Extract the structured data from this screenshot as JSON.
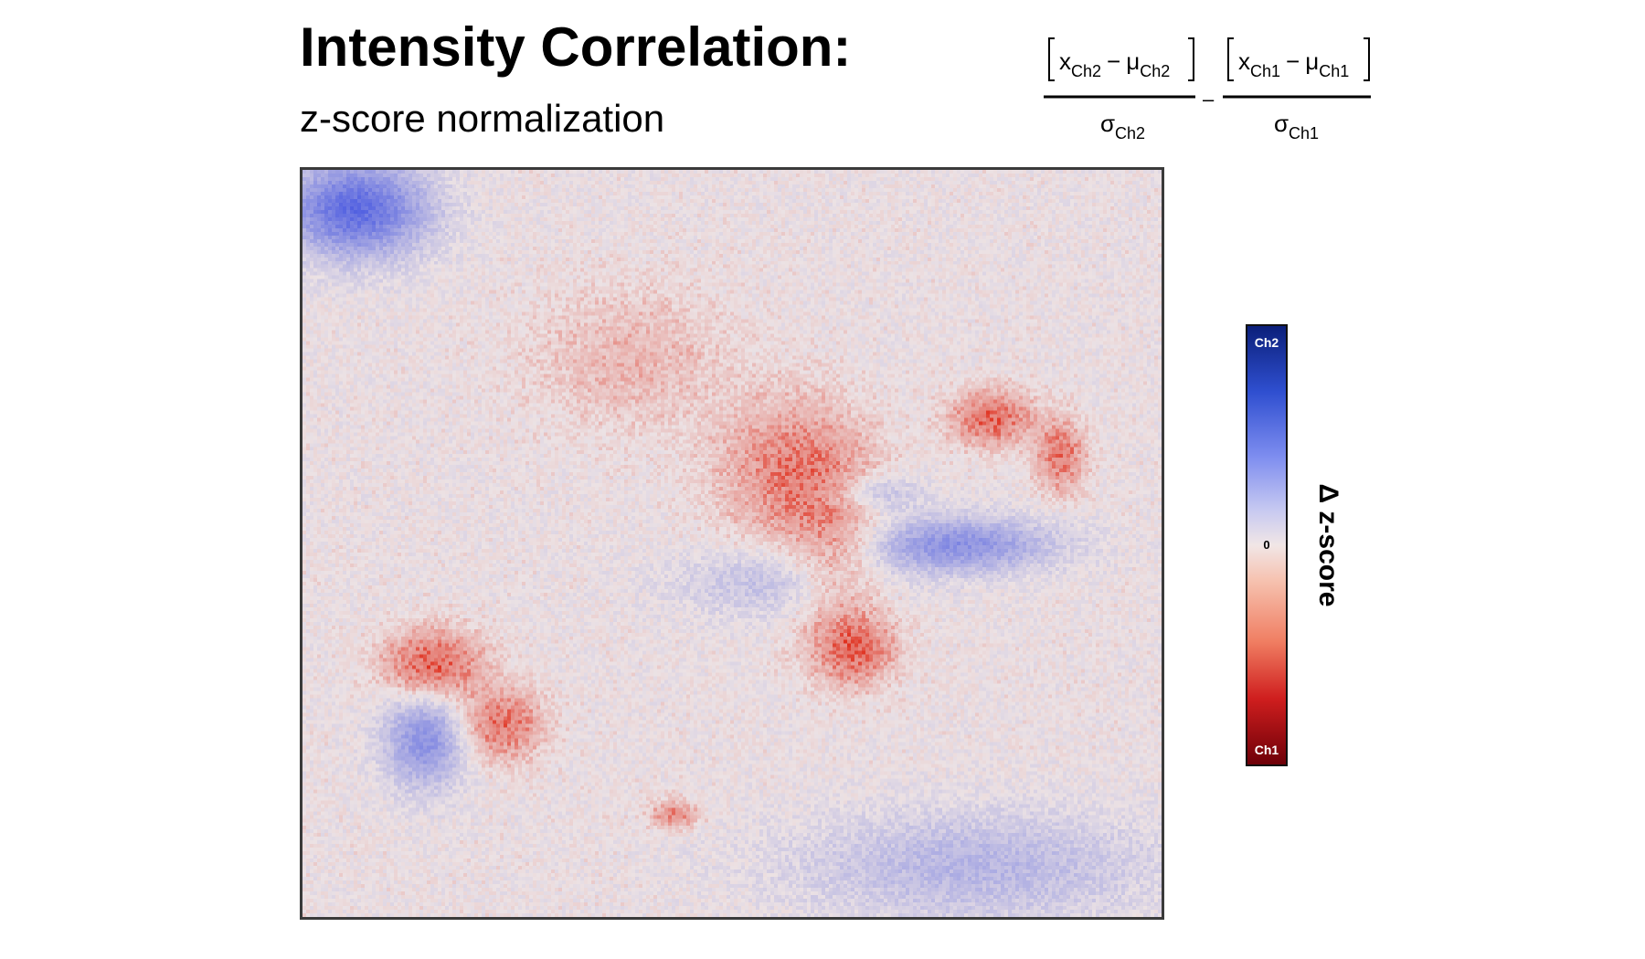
{
  "title": "Intensity Correlation:",
  "subtitle": "z-score normalization",
  "formula": {
    "left_numerator": {
      "x": "x",
      "x_sub": "Ch2",
      "mu": "μ",
      "mu_sub": "Ch2"
    },
    "left_denominator": {
      "sigma": "σ",
      "sigma_sub": "Ch2"
    },
    "operator": "–",
    "right_numerator": {
      "x": "x",
      "x_sub": "Ch1",
      "mu": "μ",
      "mu_sub": "Ch1"
    },
    "right_denominator": {
      "sigma": "σ",
      "sigma_sub": "Ch1"
    }
  },
  "chart_data": {
    "type": "heatmap",
    "title": "Intensity Correlation:",
    "subtitle": "z-score normalization",
    "colorbar": {
      "label": "Δ z-score",
      "top_label": "Ch2",
      "middle_label": "0",
      "bottom_label": "Ch1",
      "top_color": "#0b1f7a",
      "middle_color": "#f1e6e6",
      "bottom_color": "#6e0008"
    },
    "background_color": "#ece2e4",
    "ch2_positive_color": "#3d4fe0",
    "ch1_positive_color": "#e0301e",
    "regions": [
      {
        "type": "Ch2",
        "cx": 0.06,
        "cy": 0.05,
        "rx": 0.09,
        "ry": 0.07,
        "strength": 0.8
      },
      {
        "type": "Ch2",
        "cx": 0.14,
        "cy": 0.76,
        "rx": 0.05,
        "ry": 0.07,
        "strength": 0.55
      },
      {
        "type": "Ch2",
        "cx": 0.76,
        "cy": 0.5,
        "rx": 0.12,
        "ry": 0.04,
        "strength": 0.55
      },
      {
        "type": "Ch2",
        "cx": 0.66,
        "cy": 0.43,
        "rx": 0.06,
        "ry": 0.03,
        "strength": 0.3
      },
      {
        "type": "Ch2",
        "cx": 0.55,
        "cy": 0.55,
        "rx": 0.12,
        "ry": 0.05,
        "strength": 0.25
      },
      {
        "type": "Ch2",
        "cx": 0.78,
        "cy": 0.93,
        "rx": 0.22,
        "ry": 0.08,
        "strength": 0.3
      },
      {
        "type": "Ch1",
        "cx": 0.15,
        "cy": 0.66,
        "rx": 0.06,
        "ry": 0.05,
        "strength": 0.6
      },
      {
        "type": "Ch1",
        "cx": 0.23,
        "cy": 0.74,
        "rx": 0.05,
        "ry": 0.05,
        "strength": 0.5
      },
      {
        "type": "Ch1",
        "cx": 0.57,
        "cy": 0.4,
        "rx": 0.09,
        "ry": 0.1,
        "strength": 0.45
      },
      {
        "type": "Ch1",
        "cx": 0.64,
        "cy": 0.64,
        "rx": 0.05,
        "ry": 0.05,
        "strength": 0.5
      },
      {
        "type": "Ch1",
        "cx": 0.8,
        "cy": 0.33,
        "rx": 0.05,
        "ry": 0.04,
        "strength": 0.55
      },
      {
        "type": "Ch1",
        "cx": 0.88,
        "cy": 0.38,
        "rx": 0.03,
        "ry": 0.05,
        "strength": 0.5
      },
      {
        "type": "Ch1",
        "cx": 0.43,
        "cy": 0.86,
        "rx": 0.03,
        "ry": 0.02,
        "strength": 0.4
      },
      {
        "type": "Ch1",
        "cx": 0.38,
        "cy": 0.25,
        "rx": 0.12,
        "ry": 0.1,
        "strength": 0.2
      },
      {
        "type": "Ch1",
        "cx": 0.62,
        "cy": 0.52,
        "rx": 0.06,
        "ry": 0.12,
        "strength": 0.3
      }
    ]
  }
}
